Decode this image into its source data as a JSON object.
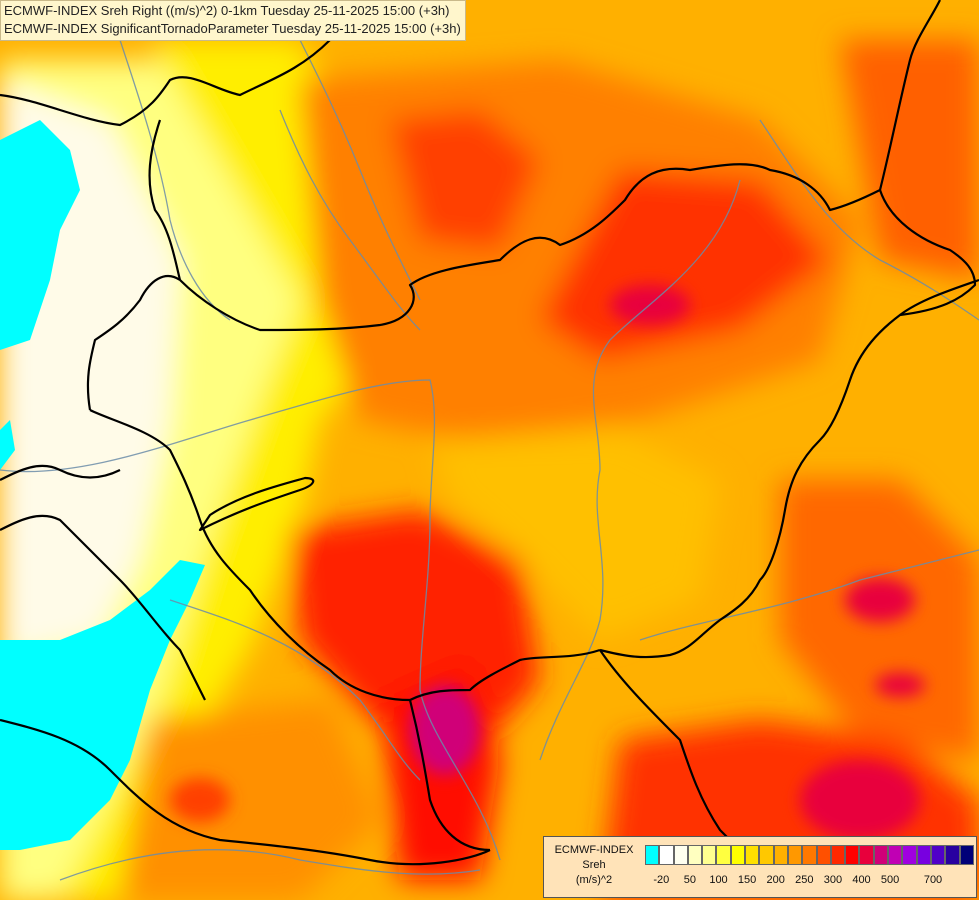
{
  "title": {
    "line1": "ECMWF-INDEX Sreh Right ((m/s)^2) 0-1km Tuesday 25-11-2025 15:00 (+3h)",
    "line2": "ECMWF-INDEX SignificantTornadoParameter Tuesday 25-11-2025 15:00 (+3h)"
  },
  "legend": {
    "name_line1": "ECMWF-INDEX",
    "name_line2": "Sreh",
    "unit": "(m/s)^2",
    "colors": [
      "#00ffff",
      "#ffffff",
      "#fffff0",
      "#ffffc0",
      "#ffff90",
      "#ffff40",
      "#ffff00",
      "#ffe000",
      "#ffc800",
      "#ffb000",
      "#ff9800",
      "#ff7800",
      "#ff5000",
      "#ff2800",
      "#ff0000",
      "#e8003c",
      "#d00078",
      "#c000b4",
      "#a000e0",
      "#7800e0",
      "#5000c8",
      "#2800a0",
      "#000078"
    ],
    "tick_labels": [
      "-20",
      "50",
      "100",
      "150",
      "200",
      "250",
      "300",
      "400",
      "500",
      "700"
    ]
  }
}
